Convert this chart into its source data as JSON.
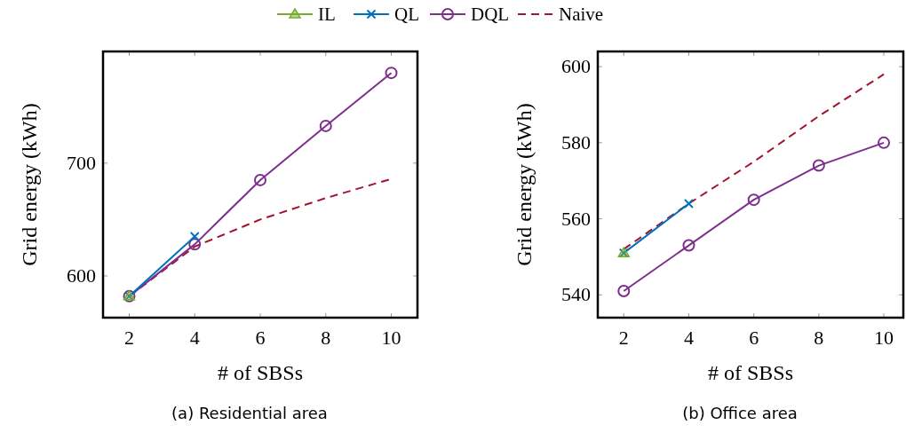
{
  "chart_data": [
    {
      "type": "line",
      "title": "(a) Residential area",
      "xlabel": "# of SBSs",
      "ylabel": "Grid energy (kWh)",
      "xlim": [
        1.2,
        10.8
      ],
      "ylim": [
        563,
        799
      ],
      "xticks": [
        2,
        4,
        6,
        8,
        10
      ],
      "yticks": [
        600,
        700
      ],
      "grid": false,
      "legend": "top",
      "x": [
        2,
        4,
        6,
        8,
        10
      ],
      "series": [
        {
          "name": "IL",
          "color": "#77ac30",
          "marker": "triangle",
          "line_style": "solid",
          "values": [
            582,
            null,
            null,
            null,
            null
          ]
        },
        {
          "name": "QL",
          "color": "#0072bd",
          "marker": "cross",
          "line_style": "solid",
          "values": [
            582,
            635,
            null,
            null,
            null
          ]
        },
        {
          "name": "DQL",
          "color": "#7e2f8e",
          "marker": "circle",
          "line_style": "solid",
          "values": [
            582,
            628,
            685,
            733,
            780
          ]
        },
        {
          "name": "Naive",
          "color": "#a2142f",
          "marker": "none",
          "line_style": "dashed",
          "values": [
            582,
            626,
            650,
            669,
            686
          ]
        }
      ]
    },
    {
      "type": "line",
      "title": "(b) Office area",
      "xlabel": "# of SBSs",
      "ylabel": "Grid energy (kWh)",
      "xlim": [
        1.2,
        10.6
      ],
      "ylim": [
        534,
        604
      ],
      "xticks": [
        2,
        4,
        6,
        8,
        10
      ],
      "yticks": [
        540,
        560,
        580,
        600
      ],
      "grid": false,
      "x": [
        2,
        4,
        6,
        8,
        10
      ],
      "series": [
        {
          "color": "#77ac30",
          "marker": "triangle",
          "values": [
            551,
            null,
            null,
            null,
            null
          ]
        },
        {
          "color": "#0072bd",
          "marker": "cross",
          "line_style": "solid",
          "values": [
            551,
            564,
            null,
            null,
            null
          ]
        },
        {
          "color": "#7e2f8e",
          "marker": "circle",
          "line_style": "solid",
          "values": [
            541,
            553,
            565,
            574,
            580
          ]
        },
        {
          "color": "#a2142f",
          "marker": "none",
          "line_style": "dashed",
          "values": [
            552,
            564,
            575,
            587,
            598
          ]
        }
      ]
    }
  ]
}
